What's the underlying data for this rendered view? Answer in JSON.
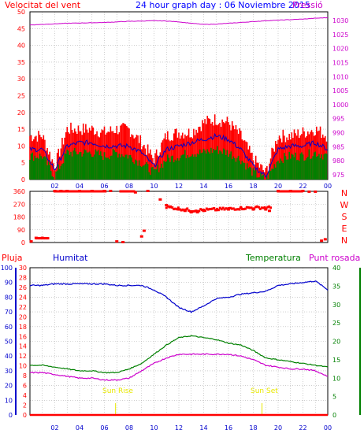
{
  "header": {
    "wind_label": "Velocitat del vent",
    "title": "24 hour graph day : 06 Noviembre 2015",
    "pressure_label": "Pressió"
  },
  "colors": {
    "wind_label": "#ff0000",
    "title": "#0000ff",
    "pressure": "#cc00cc",
    "wind_gust": "#ff0000",
    "wind_avg": "#0000cc",
    "wind_min": "#008000",
    "direction": "#ff0000",
    "humidity": "#0000cc",
    "temperature": "#008000",
    "dew_point": "#cc00cc",
    "rain": "#ff0000",
    "sun": "#e8e800",
    "grid": "#b0b0b0"
  },
  "panel_top": {
    "wind_ticks": [
      "0",
      "5",
      "10",
      "15",
      "20",
      "25",
      "30",
      "35",
      "40",
      "45",
      "50"
    ],
    "pressure_ticks": [
      "975",
      "980",
      "985",
      "990",
      "995",
      "1000",
      "1005",
      "1010",
      "1015",
      "1020",
      "1025",
      "1030"
    ],
    "hour_ticks": [
      "02",
      "04",
      "06",
      "08",
      "10",
      "12",
      "14",
      "16",
      "18",
      "20",
      "22",
      "00"
    ]
  },
  "panel_dir": {
    "dir_ticks": [
      "0",
      "90",
      "180",
      "270",
      "360"
    ],
    "compass": [
      "N",
      "W",
      "S",
      "E",
      "N"
    ]
  },
  "panel_bottom": {
    "rain_label": "Pluja",
    "humidity_label": "Humitat",
    "temperature_label": "Temperatura",
    "dew_label": "Punt rosada",
    "humidity_ticks": [
      "0",
      "10",
      "20",
      "30",
      "40",
      "50",
      "60",
      "70",
      "80",
      "90",
      "100"
    ],
    "rain_ticks": [
      "0",
      "2",
      "4",
      "6",
      "8",
      "10",
      "12",
      "14",
      "16",
      "18",
      "20",
      "22",
      "24",
      "26",
      "28",
      "30"
    ],
    "temp_ticks": [
      "0",
      "5",
      "10",
      "15",
      "20",
      "25",
      "30",
      "35",
      "40"
    ],
    "sunrise_label": "Sun Rise",
    "sunset_label": "Sun Set",
    "sunrise_hour": 6.9,
    "sunset_hour": 18.7
  },
  "chart_data": [
    {
      "type": "line",
      "title": "24 hour graph day : 06 Noviembre 2015",
      "ylabel": "Velocitat del vent",
      "y2label": "Pressió",
      "ylim": [
        0,
        50
      ],
      "y2lim": [
        975,
        1031
      ],
      "x_unit": "hour",
      "series": [
        {
          "name": "Pressió",
          "axis": "right",
          "x": [
            0,
            1,
            2,
            3,
            4,
            5,
            6,
            7,
            8,
            9,
            10,
            11,
            12,
            13,
            14,
            15,
            16,
            17,
            18,
            19,
            20,
            21,
            22,
            23,
            24
          ],
          "values": [
            1028.4,
            1028.6,
            1028.8,
            1029.0,
            1029.1,
            1029.2,
            1029.3,
            1029.5,
            1029.7,
            1029.8,
            1029.9,
            1029.8,
            1029.5,
            1029.0,
            1028.6,
            1028.7,
            1029.0,
            1029.3,
            1029.6,
            1029.9,
            1030.1,
            1030.3,
            1030.5,
            1030.8,
            1031.0
          ]
        },
        {
          "name": "",
          "role": "gust",
          "x": [
            0,
            1,
            2,
            3,
            4,
            5,
            6,
            7,
            8,
            9,
            10,
            11,
            12,
            13,
            14,
            15,
            16,
            17,
            18,
            19,
            20,
            21,
            22,
            23,
            24
          ],
          "values": [
            13,
            13,
            4,
            15,
            15,
            15,
            14,
            15,
            15,
            11,
            6,
            13,
            14,
            14,
            17,
            18,
            17,
            13,
            6,
            2,
            13,
            13,
            14,
            15,
            13
          ]
        },
        {
          "name": "",
          "role": "average",
          "x": [
            0,
            1,
            2,
            3,
            4,
            5,
            6,
            7,
            8,
            9,
            10,
            11,
            12,
            13,
            14,
            15,
            16,
            17,
            18,
            19,
            20,
            21,
            22,
            23,
            24
          ],
          "values": [
            9,
            9,
            3,
            10,
            11,
            11,
            10,
            10,
            10,
            8,
            4,
            9,
            10,
            11,
            12,
            13,
            12,
            9,
            4,
            1,
            9,
            10,
            10,
            11,
            9
          ]
        },
        {
          "name": "",
          "role": "minimum",
          "x": [
            0,
            1,
            2,
            3,
            4,
            5,
            6,
            7,
            8,
            9,
            10,
            11,
            12,
            13,
            14,
            15,
            16,
            17,
            18,
            19,
            20,
            21,
            22,
            23,
            24
          ],
          "values": [
            7,
            7,
            1,
            8,
            8,
            8,
            7,
            8,
            7,
            5,
            2,
            6,
            7,
            8,
            8,
            9,
            8,
            6,
            2,
            0,
            6,
            7,
            7,
            8,
            7
          ]
        }
      ]
    },
    {
      "type": "scatter",
      "ylabel": "",
      "ylim": [
        0,
        360
      ],
      "x_unit": "hour",
      "series": [
        {
          "name": "",
          "x": [
            0.1,
            0.5,
            1.0,
            2.0,
            2.5,
            3.0,
            4.0,
            5.0,
            6.0,
            6.5,
            7.0,
            7.5,
            8.5,
            9.0,
            9.2,
            9.5,
            10.5,
            11.0,
            11.3,
            12.0,
            12.5,
            13.0,
            13.5,
            14.0,
            15.0,
            16.0,
            17.0,
            18.0,
            19.0,
            19.3,
            20.0,
            21.0,
            22.0,
            22.5,
            23.0,
            23.5,
            23.8
          ],
          "values": [
            5,
            30,
            30,
            360,
            360,
            360,
            360,
            360,
            360,
            360,
            5,
            0,
            350,
            40,
            80,
            360,
            300,
            260,
            250,
            230,
            220,
            210,
            210,
            220,
            225,
            230,
            240,
            230,
            230,
            220,
            360,
            360,
            360,
            355,
            355,
            10,
            20
          ]
        }
      ]
    },
    {
      "type": "line",
      "ylabel": "Humitat",
      "y2label": "Temperatura",
      "ylim": [
        0,
        100
      ],
      "y2lim": [
        0,
        40
      ],
      "x_unit": "hour",
      "series": [
        {
          "name": "Humitat",
          "axis": "left",
          "x": [
            0,
            1,
            2,
            3,
            4,
            5,
            6,
            7,
            8,
            9,
            10,
            11,
            12,
            13,
            14,
            15,
            16,
            17,
            18,
            19,
            20,
            21,
            22,
            23,
            24
          ],
          "values": [
            88,
            88,
            89,
            89,
            89,
            89,
            89,
            88,
            88,
            88,
            85,
            80,
            73,
            70,
            74,
            79,
            80,
            82,
            83,
            84,
            88,
            89,
            90,
            91,
            85
          ]
        },
        {
          "name": "Temperatura",
          "axis": "right",
          "x": [
            0,
            1,
            2,
            3,
            4,
            5,
            6,
            7,
            8,
            9,
            10,
            11,
            12,
            13,
            14,
            15,
            16,
            17,
            18,
            19,
            20,
            21,
            22,
            23,
            24
          ],
          "values": [
            13.5,
            13.5,
            13,
            12.5,
            12,
            12,
            11.5,
            11.5,
            12.5,
            14,
            16.5,
            19,
            21,
            21.5,
            21,
            20.5,
            19.5,
            19,
            17.5,
            15.5,
            15,
            14.5,
            14,
            13.5,
            13
          ]
        },
        {
          "name": "Punt rosada",
          "axis": "right",
          "x": [
            0,
            1,
            2,
            3,
            4,
            5,
            6,
            7,
            8,
            9,
            10,
            11,
            12,
            13,
            14,
            15,
            16,
            17,
            18,
            19,
            20,
            21,
            22,
            23,
            24
          ],
          "values": [
            11.5,
            11.5,
            11,
            10.5,
            10,
            10,
            9.5,
            9.5,
            10,
            12,
            14,
            15.5,
            16.5,
            16.5,
            16.5,
            16.5,
            16.5,
            16,
            15,
            13.5,
            13,
            12.5,
            12.5,
            12,
            10.5
          ]
        },
        {
          "name": "Pluja",
          "axis": "left",
          "x": [
            0,
            24
          ],
          "values": [
            0,
            0
          ]
        }
      ]
    }
  ]
}
